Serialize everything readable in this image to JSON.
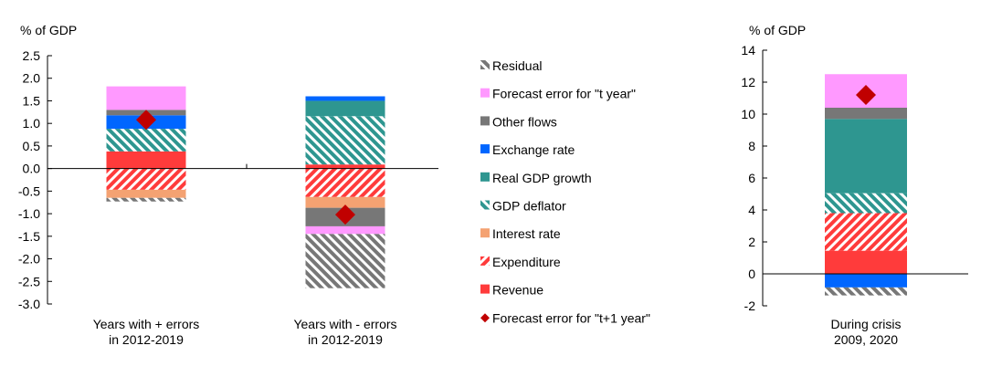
{
  "chart_data": [
    {
      "type": "bar",
      "stacked": true,
      "ylabel": "% of GDP",
      "ylim": [
        -3.0,
        2.5
      ],
      "yticks": [
        "2.5",
        "2.0",
        "1.5",
        "1.0",
        "0.5",
        "0.0",
        "-0.5",
        "-1.0",
        "-1.5",
        "-2.0",
        "-2.5",
        "-3.0"
      ],
      "categories": [
        [
          "Years with + errors",
          "in 2012-2019"
        ],
        [
          "Years with - errors",
          "in 2012-2019"
        ]
      ],
      "series": [
        {
          "name": "Revenue",
          "values": [
            0.38,
            0.09
          ]
        },
        {
          "name": "Expenditure",
          "values": [
            -0.47,
            -0.63
          ]
        },
        {
          "name": "Interest rate",
          "values": [
            -0.18,
            -0.24
          ]
        },
        {
          "name": "GDP deflator",
          "values": [
            0.5,
            1.07
          ]
        },
        {
          "name": "Real GDP growth",
          "values": [
            0,
            0.34
          ]
        },
        {
          "name": "Exchange rate",
          "values": [
            0.3,
            0.1
          ]
        },
        {
          "name": "Other flows",
          "values": [
            0.12,
            -0.41
          ]
        },
        {
          "name": "Forecast error for \"t year\"",
          "values": [
            0.52,
            -0.17
          ]
        },
        {
          "name": "Residual",
          "values": [
            -0.08,
            -1.2
          ]
        }
      ],
      "markers": {
        "name": "Forecast error for \"t+1 year\"",
        "values": [
          1.08,
          -1.02
        ]
      }
    },
    {
      "type": "bar",
      "stacked": true,
      "ylabel": "% of GDP",
      "ylim": [
        -2,
        14
      ],
      "yticks": [
        "14",
        "12",
        "10",
        "8",
        "6",
        "4",
        "2",
        "0",
        "-2"
      ],
      "categories": [
        [
          "During crisis",
          "2009, 2020"
        ]
      ],
      "series": [
        {
          "name": "Revenue",
          "values": [
            1.45
          ]
        },
        {
          "name": "Expenditure",
          "values": [
            2.35
          ]
        },
        {
          "name": "Interest rate",
          "values": [
            0
          ]
        },
        {
          "name": "GDP deflator",
          "values": [
            1.25
          ]
        },
        {
          "name": "Real GDP growth",
          "values": [
            4.65
          ]
        },
        {
          "name": "Exchange rate",
          "values": [
            -0.85
          ]
        },
        {
          "name": "Other flows",
          "values": [
            0.7
          ]
        },
        {
          "name": "Forecast error for \"t year\"",
          "values": [
            2.1
          ]
        },
        {
          "name": "Residual",
          "values": [
            -0.5
          ]
        }
      ],
      "markers": {
        "name": "Forecast error for \"t+1 year\"",
        "values": [
          11.2
        ]
      }
    }
  ],
  "legend": {
    "items": [
      "Residual",
      "Forecast error for \"t year\"",
      "Other flows",
      "Exchange rate",
      "Real GDP growth",
      "GDP deflator",
      "Interest rate",
      "Expenditure",
      "Revenue",
      "Forecast error for \"t+1 year\""
    ]
  },
  "colors": {
    "Revenue": "#FF3B3B",
    "Expenditure": "#FF3B3B",
    "Interest rate": "#F4A272",
    "GDP deflator": "#2E9690",
    "Real GDP growth": "#2E9690",
    "Exchange rate": "#0066FF",
    "Other flows": "#777777",
    "Forecast error for \"t year\"": "#FF99FF",
    "Residual": "#777777",
    "marker": "#C00000"
  }
}
